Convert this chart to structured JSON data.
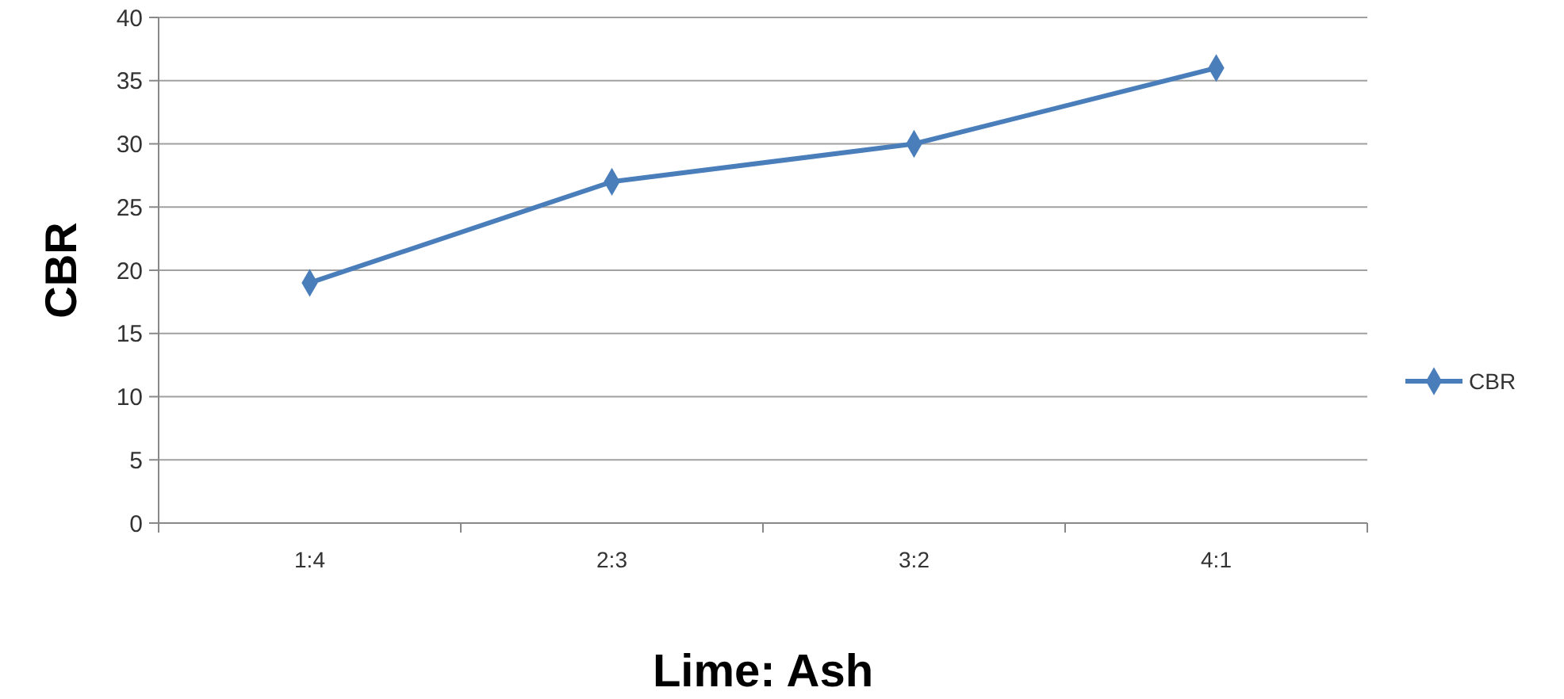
{
  "chart_data": {
    "type": "line",
    "xlabel": "Lime: Ash",
    "ylabel": "CBR",
    "categories": [
      "1:4",
      "2:3",
      "3:2",
      "4:1"
    ],
    "series": [
      {
        "name": "CBR",
        "color": "#4a7ebb",
        "values": [
          19,
          27,
          30,
          36
        ]
      }
    ],
    "ylim": [
      0,
      40
    ],
    "yticks": [
      0,
      5,
      10,
      15,
      20,
      25,
      30,
      35,
      40
    ],
    "grid": "y",
    "legend": "right",
    "marker": "diamond"
  }
}
